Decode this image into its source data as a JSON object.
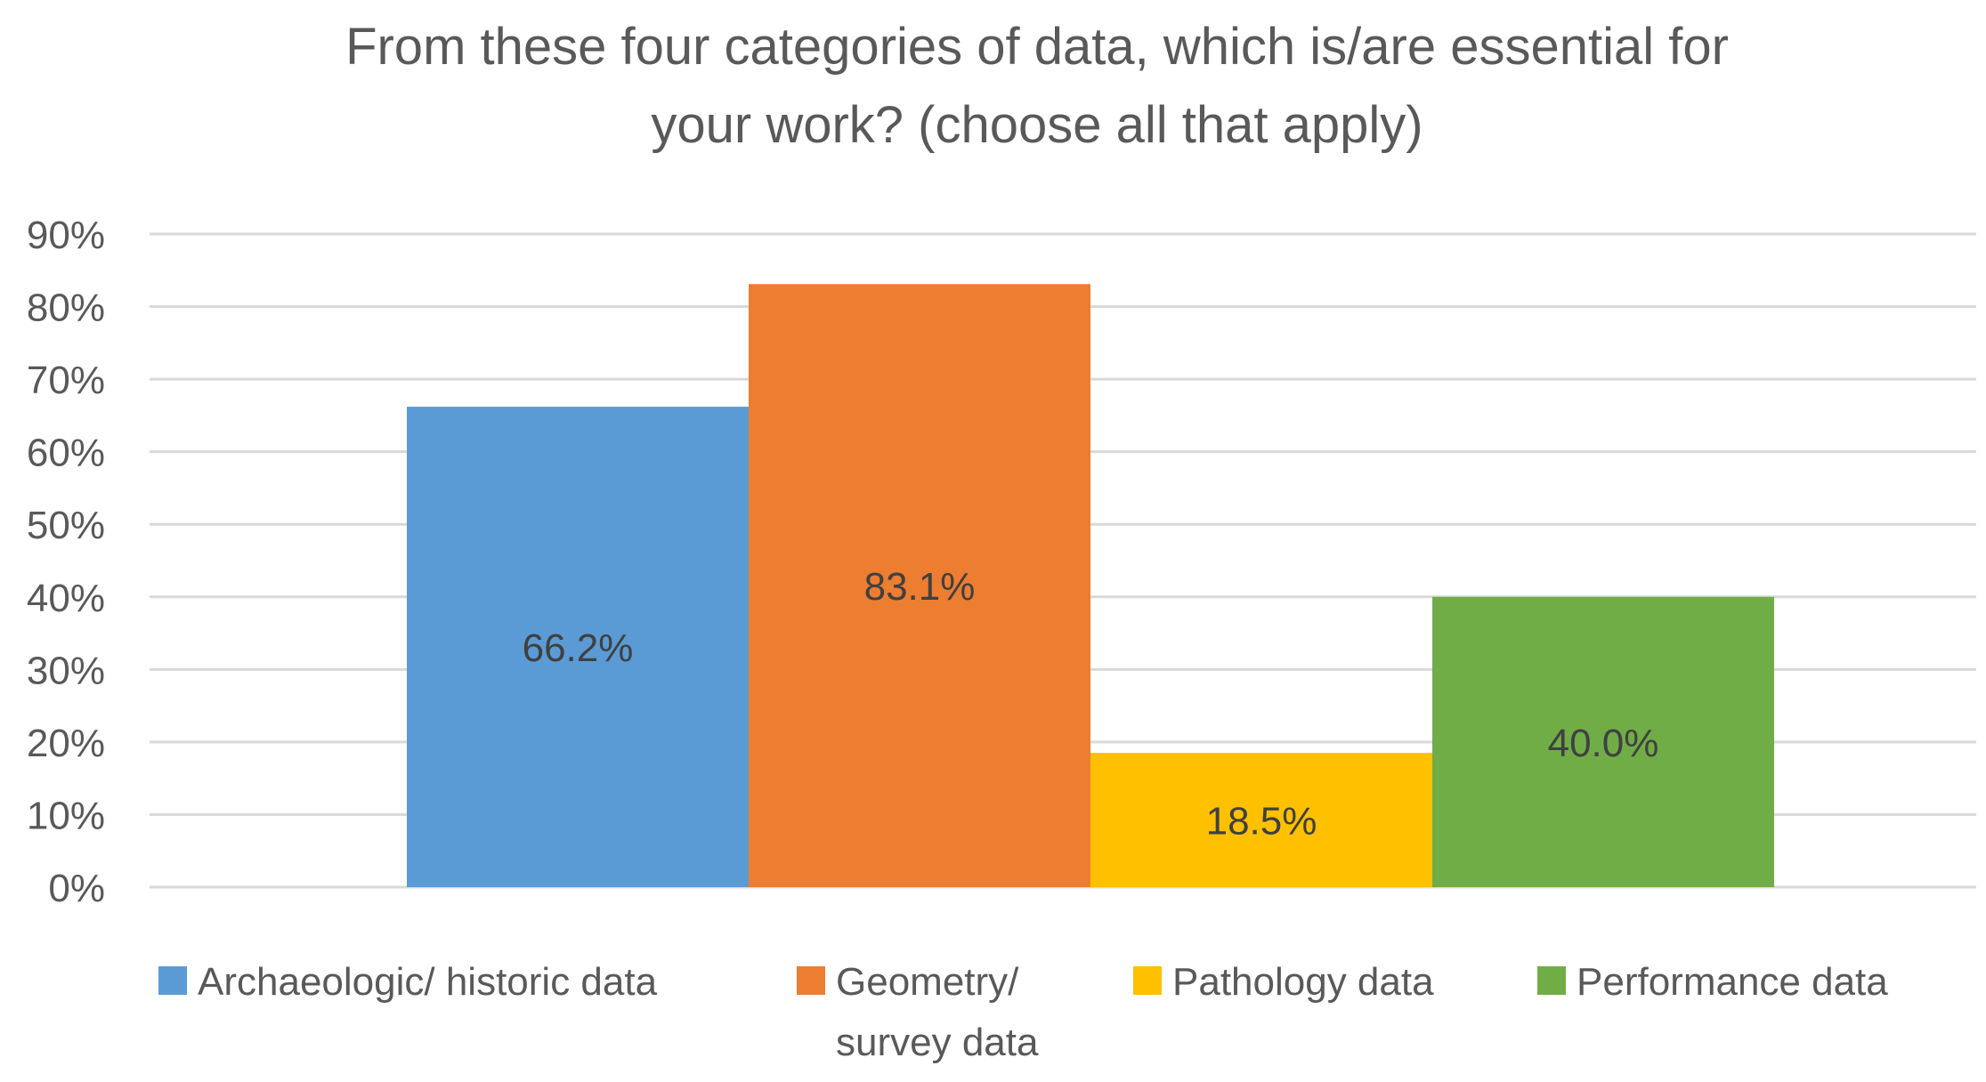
{
  "chart_data": {
    "type": "bar",
    "title": "From these four categories of data, which is/are essential for your work? (choose all that apply)",
    "title_lines": [
      "From these four categories of data, which is/are essential for",
      "your work? (choose all that apply)"
    ],
    "xlabel": "",
    "ylabel": "",
    "ylim": [
      0,
      90
    ],
    "yticks": [
      0,
      10,
      20,
      30,
      40,
      50,
      60,
      70,
      80,
      90
    ],
    "ytick_labels": [
      "0%",
      "10%",
      "20%",
      "30%",
      "40%",
      "50%",
      "60%",
      "70%",
      "80%",
      "90%"
    ],
    "grid": true,
    "legend_position": "bottom",
    "series": [
      {
        "name": "Archaeologic/ historic data",
        "name_lines": [
          "Archaeologic/ historic data"
        ],
        "value": 66.2,
        "label": "66.2%",
        "color": "#5B9BD5"
      },
      {
        "name": "Geometry/ survey data",
        "name_lines": [
          "Geometry/",
          "survey data"
        ],
        "value": 83.1,
        "label": "83.1%",
        "color": "#ED7D31"
      },
      {
        "name": "Pathology data",
        "name_lines": [
          "Pathology data"
        ],
        "value": 18.5,
        "label": "18.5%",
        "color": "#FFC000"
      },
      {
        "name": "Performance data",
        "name_lines": [
          "Performance data"
        ],
        "value": 40.0,
        "label": "40.0%",
        "color": "#70AD47"
      }
    ]
  },
  "colors": {
    "text": "#595959",
    "grid": "#D9D9D9",
    "data_label": "#404040"
  }
}
